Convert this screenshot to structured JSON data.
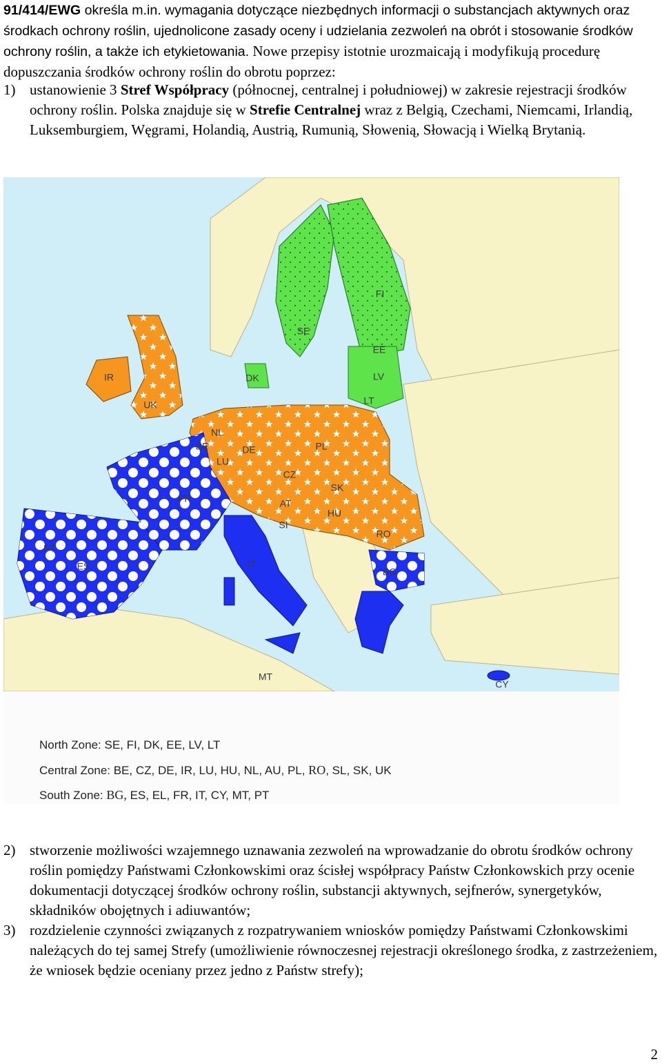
{
  "intro": {
    "runs": [
      {
        "text": "91/414/EWG",
        "bold": true
      },
      {
        "text": " określa m.in. wymagania dotyczące niezbędnych informacji o substancjach aktywnych oraz środkach ochrony roślin, ujednolicone zasady oceny i udzielania zezwoleń na obrót i stosowanie środków ochrony roślin, a także ich etykietowania."
      },
      {
        "text": " Nowe przepisy istotnie urozmaicają i modyfikują procedurę dopuszczania środków ochrony roślin do obrotu poprzez:"
      }
    ]
  },
  "list_1": {
    "number": "1)",
    "runs": [
      {
        "text": "ustanowienie 3 "
      },
      {
        "text": "Stref Współpracy",
        "bold": true
      },
      {
        "text": " (północnej, centralnej i południowej) w zakresie rejestracji środków ochrony roślin. Polska znajduje się w "
      },
      {
        "text": "Strefie Centralnej",
        "bold": true
      },
      {
        "text": " wraz z Belgią, Czechami, Niemcami, Irlandią, Luksemburgiem, Węgrami, Holandią, Austrią, Rumunią, Słowenią, Słowacją i Wielką Brytanią."
      }
    ]
  },
  "map": {
    "labels": [
      "FI",
      "SE",
      "EE",
      "LV",
      "LT",
      "DK",
      "IR",
      "UK",
      "NL",
      "BE",
      "LU",
      "DE",
      "PL",
      "CZ",
      "SK",
      "AT",
      "HU",
      "SI",
      "RO",
      "BG",
      "FR",
      "PT",
      "ES",
      "IT",
      "MT",
      "CY"
    ]
  },
  "legend": {
    "north": [
      "North Zone: SE, FI, DK, EE, LV, LT"
    ],
    "central": [
      "Central Zone: BE, CZ, DE, IR, LU, HU, NL, AU, PL, ",
      "RO",
      ", SL, SK, UK"
    ],
    "south": [
      "South Zone: ",
      "BG,",
      " ES, EL, FR, IT, CY, MT, PT"
    ]
  },
  "list_2": {
    "number": "2)",
    "text": "stworzenie możliwości wzajemnego uznawania zezwoleń na wprowadzanie do obrotu środków ochrony roślin pomiędzy Państwami Członkowskimi oraz ścisłej współpracy Państw Członkowskich przy ocenie dokumentacji dotyczącej środków ochrony roślin, substancji aktywnych, sejfnerów, synergetyków, składników obojętnych i adiuwantów;"
  },
  "list_3": {
    "number": "3)",
    "text": "rozdzielenie czynności związanych z rozpatrywaniem wniosków pomiędzy Państwami Członkowskimi należących do tej samej Strefy (umożliwienie równoczesnej rejestracji określonego środka, z zastrzeżeniem, że wniosek będzie oceniany przez jedno z Państw strefy);"
  },
  "page_number": "2"
}
